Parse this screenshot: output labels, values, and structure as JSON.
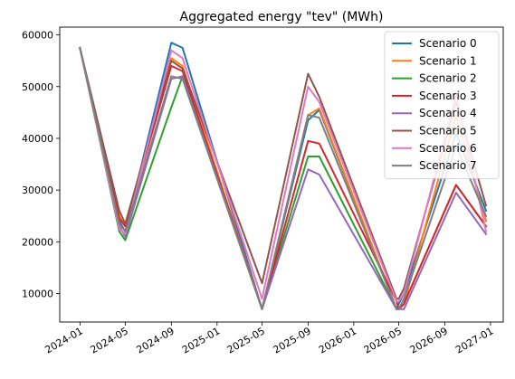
{
  "chart_data": {
    "type": "line",
    "title": "Aggregated energy \"tev\" (MWh)",
    "xlabel": "",
    "ylabel": "",
    "xlim": [
      "2023-11-08",
      "2027-02-04"
    ],
    "ylim": [
      4500,
      61500
    ],
    "x_ticks": [
      "2024-01",
      "2024-05",
      "2024-09",
      "2025-01",
      "2025-05",
      "2025-09",
      "2026-01",
      "2026-05",
      "2026-09",
      "2027-01"
    ],
    "y_ticks": [
      10000,
      20000,
      30000,
      40000,
      50000,
      60000
    ],
    "grid": false,
    "legend_position": "top-right",
    "x": [
      "2024-01-01",
      "2024-04-15",
      "2024-05-01",
      "2024-09-01",
      "2024-10-01",
      "2025-05-01",
      "2025-09-01",
      "2025-10-01",
      "2026-04-25",
      "2026-05-01",
      "2026-05-15",
      "2026-10-01",
      "2026-12-20"
    ],
    "series": [
      {
        "name": "Scenario 0",
        "color": "#1f77b4",
        "values": [
          57500,
          24000,
          22000,
          58500,
          57500,
          7000,
          43500,
          45500,
          7000,
          8000,
          10000,
          41000,
          26000
        ]
      },
      {
        "name": "Scenario 1",
        "color": "#ff7f0e",
        "values": [
          57500,
          25000,
          23000,
          55500,
          54000,
          7000,
          44500,
          45800,
          7000,
          7000,
          8000,
          44500,
          24000
        ]
      },
      {
        "name": "Scenario 2",
        "color": "#2ca02c",
        "values": [
          57500,
          22000,
          20300,
          46000,
          52000,
          7000,
          36500,
          36500,
          7000,
          7000,
          8000,
          31000,
          23000
        ]
      },
      {
        "name": "Scenario 3",
        "color": "#d62728",
        "values": [
          57500,
          24500,
          23000,
          54000,
          53000,
          7000,
          39500,
          39000,
          8500,
          7000,
          8000,
          31000,
          23000
        ]
      },
      {
        "name": "Scenario 4",
        "color": "#9467bd",
        "values": [
          57500,
          23000,
          21000,
          51500,
          52000,
          7000,
          34000,
          33000,
          7000,
          7000,
          7000,
          29500,
          21500
        ]
      },
      {
        "name": "Scenario 5",
        "color": "#8c564b",
        "values": [
          57500,
          26000,
          23500,
          55000,
          53500,
          12000,
          52500,
          48000,
          9000,
          9000,
          11000,
          47000,
          27000
        ]
      },
      {
        "name": "Scenario 6",
        "color": "#e377c2",
        "values": [
          57500,
          22500,
          21500,
          57000,
          55500,
          9000,
          50000,
          47000,
          8500,
          8500,
          10000,
          48500,
          22000
        ]
      },
      {
        "name": "Scenario 7",
        "color": "#7f7f7f",
        "values": [
          57500,
          23500,
          22000,
          52000,
          51500,
          7000,
          44500,
          44000,
          7000,
          7000,
          9000,
          38500,
          25000
        ]
      }
    ]
  }
}
